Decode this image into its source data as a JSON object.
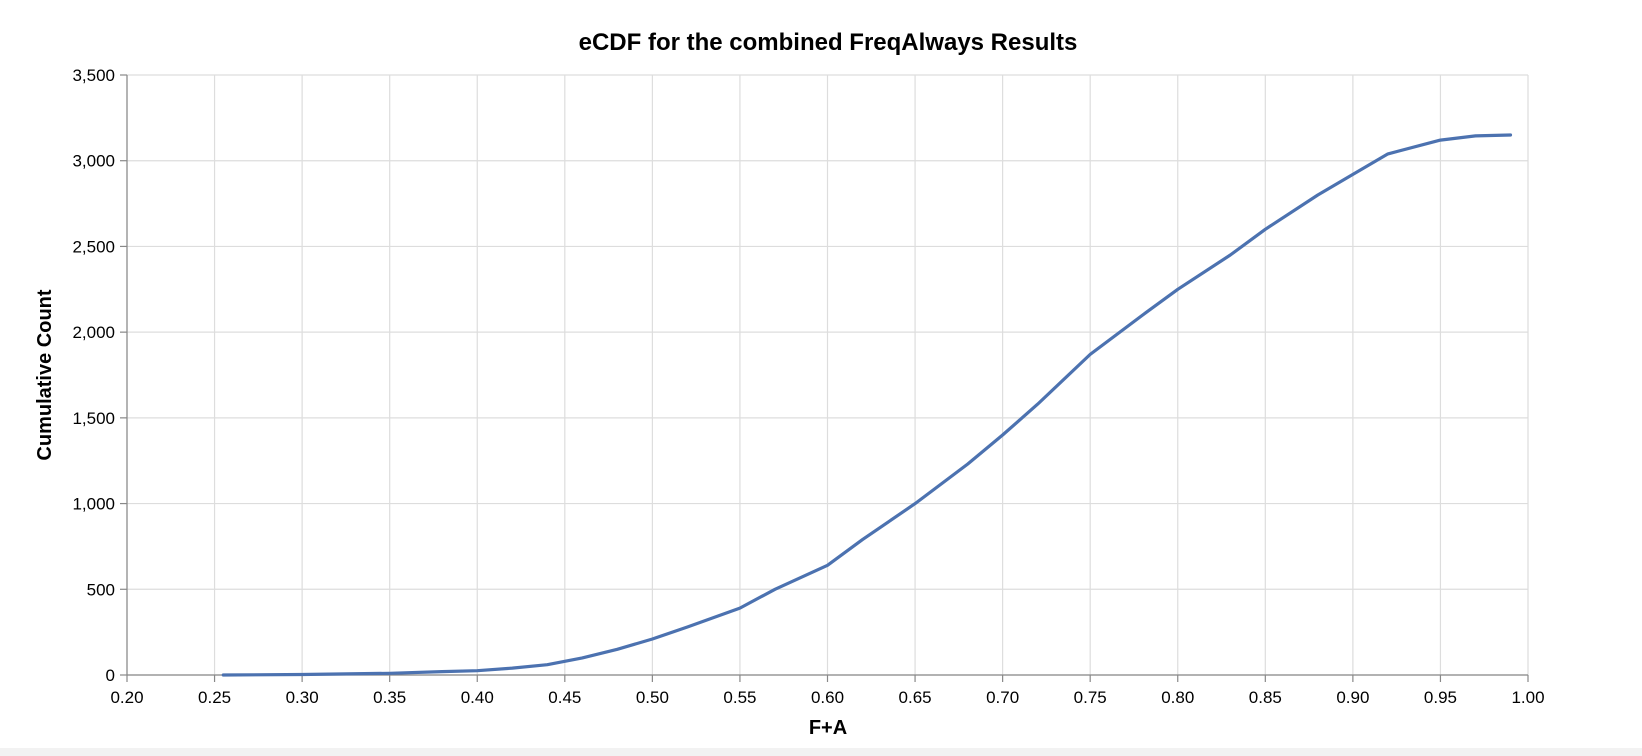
{
  "chart_data": {
    "type": "line",
    "title": "eCDF for the combined FreqAlways Results",
    "xlabel": "F+A",
    "ylabel": "Cumulative Count",
    "xlim": [
      0.2,
      1.0
    ],
    "ylim": [
      0,
      3500
    ],
    "x_ticks": [
      0.2,
      0.25,
      0.3,
      0.35,
      0.4,
      0.45,
      0.5,
      0.55,
      0.6,
      0.65,
      0.7,
      0.75,
      0.8,
      0.85,
      0.9,
      0.95,
      1.0
    ],
    "x_tick_labels": [
      "0.20",
      "0.25",
      "0.30",
      "0.35",
      "0.40",
      "0.45",
      "0.50",
      "0.55",
      "0.60",
      "0.65",
      "0.70",
      "0.75",
      "0.80",
      "0.85",
      "0.90",
      "0.95",
      "1.00"
    ],
    "y_ticks": [
      0,
      500,
      1000,
      1500,
      2000,
      2500,
      3000,
      3500
    ],
    "y_tick_labels": [
      "0",
      "500",
      "1,000",
      "1,500",
      "2,000",
      "2,500",
      "3,000",
      "3,500"
    ],
    "grid": true,
    "line_color": "#4c72b0",
    "series": [
      {
        "x": [
          0.255,
          0.3,
          0.35,
          0.38,
          0.4,
          0.42,
          0.44,
          0.45,
          0.46,
          0.48,
          0.5,
          0.52,
          0.55,
          0.57,
          0.6,
          0.62,
          0.65,
          0.68,
          0.7,
          0.72,
          0.75,
          0.78,
          0.8,
          0.83,
          0.85,
          0.88,
          0.9,
          0.92,
          0.95,
          0.97,
          0.99
        ],
        "y": [
          0,
          3,
          10,
          20,
          25,
          40,
          60,
          80,
          100,
          150,
          210,
          280,
          390,
          500,
          640,
          790,
          1000,
          1230,
          1400,
          1580,
          1870,
          2100,
          2250,
          2450,
          2600,
          2800,
          2920,
          3040,
          3120,
          3145,
          3150
        ]
      }
    ]
  }
}
